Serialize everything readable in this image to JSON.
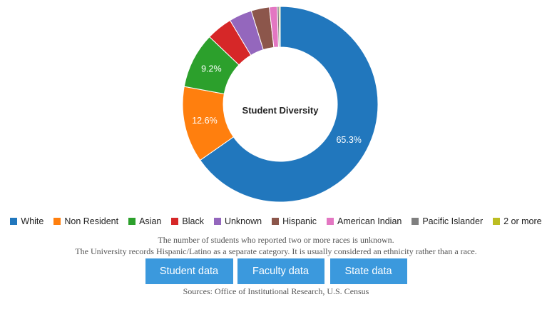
{
  "chart_data": {
    "type": "pie",
    "variant": "donut",
    "title": "Student Diversity",
    "series": [
      {
        "name": "White",
        "value": 65.3,
        "label": "65.3%",
        "color": "#2177bd"
      },
      {
        "name": "Non Resident",
        "value": 12.6,
        "label": "12.6%",
        "color": "#ff7f0e"
      },
      {
        "name": "Asian",
        "value": 9.2,
        "label": "9.2%",
        "color": "#2ca02c"
      },
      {
        "name": "Black",
        "value": 4.3,
        "label": "",
        "color": "#d62728"
      },
      {
        "name": "Unknown",
        "value": 3.8,
        "label": "",
        "color": "#9467bd"
      },
      {
        "name": "Hispanic",
        "value": 3.0,
        "label": "",
        "color": "#8c564b"
      },
      {
        "name": "American Indian",
        "value": 1.3,
        "label": "",
        "color": "#e377c2"
      },
      {
        "name": "Pacific Islander",
        "value": 0.3,
        "label": "",
        "color": "#7f7f7f"
      },
      {
        "name": "2 or more",
        "value": 0.2,
        "label": "",
        "color": "#bcbd22"
      }
    ],
    "legend_position": "bottom"
  },
  "notes": {
    "line1": "The number of students who reported two or more races is unknown.",
    "line2": "The University records Hispanic/Latino as a separate category. It is usually considered an ethnicity rather than a race."
  },
  "buttons": {
    "student": "Student data",
    "faculty": "Faculty data",
    "state": "State data"
  },
  "sources": "Sources: Office of Institutional Research, U.S. Census"
}
